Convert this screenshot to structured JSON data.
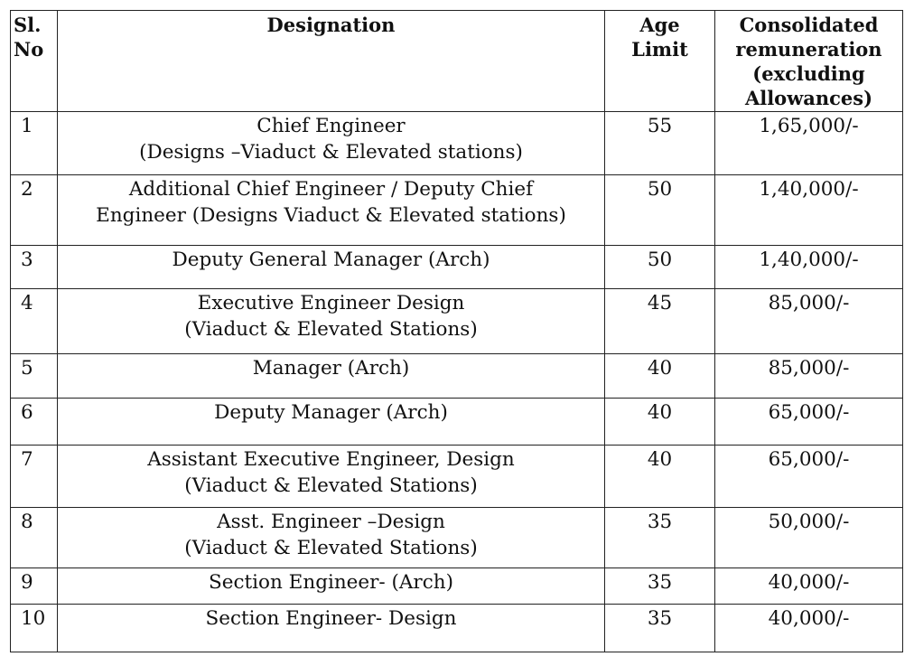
{
  "headers": {
    "sl_line1": "Sl.",
    "sl_line2": "No",
    "designation": "Designation",
    "age_line1": "Age",
    "age_line2": "Limit",
    "pay_line1": "Consolidated",
    "pay_line2": "remuneration",
    "pay_line3": "(excluding",
    "pay_line4": "Allowances)"
  },
  "rows": [
    {
      "sl": "1",
      "des1": "Chief Engineer",
      "des2": "(Designs –Viaduct & Elevated stations)",
      "age": "55",
      "pay": "1,65,000/-"
    },
    {
      "sl": "2",
      "des1": "Additional Chief Engineer / Deputy Chief",
      "des2": "Engineer (Designs Viaduct & Elevated stations)",
      "age": "50",
      "pay": "1,40,000/-"
    },
    {
      "sl": "3",
      "des1": "Deputy General Manager (Arch)",
      "des2": "",
      "age": "50",
      "pay": "1,40,000/-"
    },
    {
      "sl": "4",
      "des1": "Executive Engineer Design",
      "des2": "(Viaduct & Elevated Stations)",
      "age": "45",
      "pay": "85,000/-"
    },
    {
      "sl": "5",
      "des1": "Manager (Arch)",
      "des2": "",
      "age": "40",
      "pay": "85,000/-"
    },
    {
      "sl": "6",
      "des1": "Deputy Manager (Arch)",
      "des2": "",
      "age": "40",
      "pay": "65,000/-"
    },
    {
      "sl": "7",
      "des1": "Assistant Executive Engineer, Design",
      "des2": "(Viaduct & Elevated Stations)",
      "age": "40",
      "pay": "65,000/-"
    },
    {
      "sl": "8",
      "des1": "Asst. Engineer –Design",
      "des2": "(Viaduct & Elevated Stations)",
      "age": "35",
      "pay": "50,000/-"
    },
    {
      "sl": "9",
      "des1": "Section Engineer- (Arch)",
      "des2": "",
      "age": "35",
      "pay": "40,000/-"
    },
    {
      "sl": "10",
      "des1": "Section Engineer- Design",
      "des2": "",
      "age": "35",
      "pay": "40,000/-"
    }
  ]
}
